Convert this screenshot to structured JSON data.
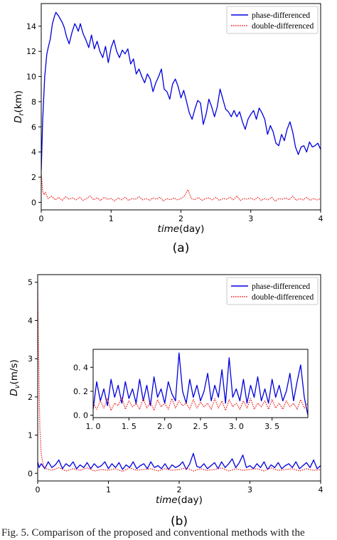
{
  "chart_data": [
    {
      "type": "line",
      "panel_label": "(a)",
      "xlabel": "time(day)",
      "xlabel_italic_part": "time",
      "xlabel_unit_part": "(day)",
      "ylabel": "D_r(km)",
      "ylabel_main": "D",
      "ylabel_sub": "r",
      "ylabel_unit": "(km)",
      "xlim": [
        0,
        4
      ],
      "ylim": [
        -0.6,
        15.8
      ],
      "xticks": [
        0,
        1,
        2,
        3,
        4
      ],
      "yticks": [
        0,
        2,
        4,
        6,
        8,
        10,
        12,
        14
      ],
      "legend_position": "top-right",
      "series": [
        {
          "name": "phase-differenced",
          "color": "#0000dd",
          "style": "solid",
          "x": [
            0,
            0.02,
            0.05,
            0.08,
            0.1,
            0.13,
            0.16,
            0.19,
            0.21,
            0.25,
            0.3,
            0.33,
            0.36,
            0.4,
            0.44,
            0.48,
            0.5,
            0.53,
            0.56,
            0.6,
            0.64,
            0.68,
            0.72,
            0.76,
            0.8,
            0.84,
            0.88,
            0.92,
            0.96,
            1.0,
            1.04,
            1.08,
            1.12,
            1.16,
            1.2,
            1.24,
            1.28,
            1.32,
            1.36,
            1.4,
            1.44,
            1.48,
            1.52,
            1.56,
            1.6,
            1.64,
            1.68,
            1.72,
            1.76,
            1.8,
            1.84,
            1.88,
            1.92,
            1.96,
            2.0,
            2.04,
            2.08,
            2.12,
            2.16,
            2.2,
            2.24,
            2.28,
            2.32,
            2.36,
            2.4,
            2.44,
            2.48,
            2.52,
            2.56,
            2.6,
            2.64,
            2.68,
            2.72,
            2.76,
            2.8,
            2.84,
            2.88,
            2.92,
            2.96,
            3.0,
            3.04,
            3.08,
            3.12,
            3.16,
            3.2,
            3.24,
            3.28,
            3.32,
            3.36,
            3.4,
            3.44,
            3.48,
            3.52,
            3.56,
            3.6,
            3.64,
            3.68,
            3.72,
            3.76,
            3.8,
            3.84,
            3.88,
            3.92,
            3.96,
            4.0
          ],
          "y": [
            2.5,
            6.5,
            10.0,
            11.8,
            12.3,
            13.0,
            14.2,
            14.8,
            15.1,
            14.8,
            14.3,
            13.9,
            13.2,
            12.6,
            13.5,
            14.2,
            14.0,
            13.6,
            14.2,
            13.4,
            12.9,
            12.3,
            13.3,
            12.2,
            12.8,
            12.0,
            11.5,
            12.4,
            11.1,
            12.3,
            12.9,
            12.0,
            11.5,
            12.1,
            11.8,
            12.2,
            11.0,
            11.4,
            10.2,
            10.6,
            10.0,
            9.5,
            10.2,
            9.8,
            8.8,
            9.5,
            10.0,
            10.6,
            9.0,
            8.8,
            8.2,
            9.4,
            9.8,
            9.2,
            8.3,
            8.9,
            8.0,
            7.1,
            6.6,
            7.4,
            8.1,
            7.9,
            6.2,
            7.0,
            8.2,
            7.6,
            6.8,
            7.6,
            9.0,
            8.2,
            7.4,
            7.2,
            6.8,
            7.3,
            6.8,
            7.2,
            6.4,
            5.8,
            6.6,
            7.0,
            7.3,
            6.6,
            7.5,
            7.1,
            6.6,
            5.4,
            6.1,
            5.6,
            4.7,
            4.5,
            5.4,
            4.9,
            5.8,
            6.4,
            5.6,
            4.4,
            3.8,
            4.4,
            4.5,
            4.0,
            4.8,
            4.4,
            4.5,
            4.7,
            4.2
          ]
        },
        {
          "name": "double-differenced",
          "color": "#ee2222",
          "style": "dotted",
          "x": [
            0,
            0.02,
            0.04,
            0.06,
            0.08,
            0.1,
            0.15,
            0.2,
            0.25,
            0.3,
            0.35,
            0.4,
            0.45,
            0.5,
            0.55,
            0.6,
            0.65,
            0.7,
            0.75,
            0.8,
            0.85,
            0.9,
            0.95,
            1.0,
            1.05,
            1.1,
            1.15,
            1.2,
            1.25,
            1.3,
            1.35,
            1.4,
            1.45,
            1.5,
            1.55,
            1.6,
            1.65,
            1.7,
            1.75,
            1.8,
            1.85,
            1.9,
            1.95,
            2.0,
            2.05,
            2.1,
            2.15,
            2.2,
            2.25,
            2.3,
            2.35,
            2.4,
            2.45,
            2.5,
            2.55,
            2.6,
            2.65,
            2.7,
            2.75,
            2.8,
            2.85,
            2.9,
            2.95,
            3.0,
            3.05,
            3.1,
            3.15,
            3.2,
            3.25,
            3.3,
            3.35,
            3.4,
            3.45,
            3.5,
            3.55,
            3.6,
            3.65,
            3.7,
            3.75,
            3.8,
            3.85,
            3.9,
            3.95,
            4.0
          ],
          "y": [
            2.4,
            0.9,
            0.6,
            0.8,
            0.5,
            0.3,
            0.5,
            0.2,
            0.4,
            0.15,
            0.45,
            0.25,
            0.35,
            0.2,
            0.4,
            0.15,
            0.3,
            0.5,
            0.2,
            0.35,
            0.15,
            0.4,
            0.25,
            0.3,
            0.1,
            0.35,
            0.2,
            0.4,
            0.15,
            0.3,
            0.25,
            0.45,
            0.2,
            0.3,
            0.15,
            0.35,
            0.25,
            0.4,
            0.1,
            0.3,
            0.2,
            0.35,
            0.2,
            0.3,
            0.5,
            1.0,
            0.3,
            0.2,
            0.4,
            0.15,
            0.3,
            0.35,
            0.2,
            0.4,
            0.15,
            0.3,
            0.25,
            0.4,
            0.2,
            0.5,
            0.15,
            0.3,
            0.25,
            0.35,
            0.2,
            0.4,
            0.15,
            0.3,
            0.2,
            0.4,
            0.1,
            0.3,
            0.25,
            0.35,
            0.2,
            0.5,
            0.15,
            0.3,
            0.2,
            0.4,
            0.15,
            0.3,
            0.2,
            0.3
          ]
        }
      ]
    },
    {
      "type": "line",
      "panel_label": "(b)",
      "xlabel": "time(day)",
      "xlabel_italic_part": "time",
      "xlabel_unit_part": "(day)",
      "ylabel": "D_v(m/s)",
      "ylabel_main": "D",
      "ylabel_sub": "v",
      "ylabel_unit": "(m/s)",
      "xlim": [
        0,
        4
      ],
      "ylim": [
        -0.2,
        5.2
      ],
      "xticks": [
        0,
        1,
        2,
        3,
        4
      ],
      "yticks": [
        0,
        1,
        2,
        3,
        4,
        5
      ],
      "legend_position": "top-right",
      "series": [
        {
          "name": "phase-differenced",
          "color": "#0000dd",
          "style": "solid",
          "x": [
            0,
            0.02,
            0.05,
            0.1,
            0.15,
            0.2,
            0.25,
            0.3,
            0.35,
            0.4,
            0.45,
            0.5,
            0.55,
            0.6,
            0.65,
            0.7,
            0.75,
            0.8,
            0.85,
            0.9,
            0.95,
            1.0,
            1.05,
            1.1,
            1.15,
            1.2,
            1.25,
            1.3,
            1.35,
            1.4,
            1.45,
            1.5,
            1.55,
            1.6,
            1.65,
            1.7,
            1.75,
            1.8,
            1.85,
            1.9,
            1.95,
            2.0,
            2.05,
            2.1,
            2.15,
            2.2,
            2.25,
            2.3,
            2.35,
            2.4,
            2.45,
            2.5,
            2.55,
            2.6,
            2.65,
            2.7,
            2.75,
            2.8,
            2.85,
            2.9,
            2.95,
            3.0,
            3.05,
            3.1,
            3.15,
            3.2,
            3.25,
            3.3,
            3.35,
            3.4,
            3.45,
            3.5,
            3.55,
            3.6,
            3.65,
            3.7,
            3.75,
            3.8,
            3.85,
            3.9,
            3.95,
            4.0
          ],
          "y": [
            0.3,
            0.15,
            0.25,
            0.12,
            0.3,
            0.15,
            0.22,
            0.35,
            0.12,
            0.25,
            0.18,
            0.3,
            0.12,
            0.22,
            0.15,
            0.28,
            0.12,
            0.25,
            0.15,
            0.2,
            0.3,
            0.12,
            0.25,
            0.15,
            0.28,
            0.1,
            0.22,
            0.15,
            0.3,
            0.12,
            0.2,
            0.25,
            0.12,
            0.3,
            0.15,
            0.2,
            0.12,
            0.25,
            0.1,
            0.22,
            0.15,
            0.2,
            0.3,
            0.1,
            0.25,
            0.52,
            0.18,
            0.15,
            0.25,
            0.12,
            0.2,
            0.28,
            0.12,
            0.3,
            0.15,
            0.25,
            0.38,
            0.15,
            0.28,
            0.48,
            0.15,
            0.2,
            0.12,
            0.25,
            0.15,
            0.3,
            0.1,
            0.22,
            0.15,
            0.28,
            0.12,
            0.2,
            0.25,
            0.15,
            0.3,
            0.12,
            0.2,
            0.28,
            0.15,
            0.35,
            0.12,
            0.2
          ]
        },
        {
          "name": "double-differenced",
          "color": "#ee2222",
          "style": "dotted",
          "x": [
            0,
            0.01,
            0.03,
            0.05,
            0.08,
            0.12,
            0.2,
            0.3,
            0.4,
            0.5,
            0.6,
            0.7,
            0.8,
            0.9,
            1.0,
            1.1,
            1.2,
            1.3,
            1.4,
            1.5,
            1.6,
            1.7,
            1.8,
            1.9,
            2.0,
            2.1,
            2.2,
            2.3,
            2.4,
            2.5,
            2.6,
            2.7,
            2.8,
            2.9,
            3.0,
            3.1,
            3.2,
            3.3,
            3.4,
            3.5,
            3.6,
            3.7,
            3.8,
            3.9,
            4.0
          ],
          "y": [
            5.0,
            3.5,
            1.2,
            0.5,
            0.2,
            0.12,
            0.08,
            0.15,
            0.06,
            0.12,
            0.08,
            0.14,
            0.06,
            0.1,
            0.08,
            0.12,
            0.05,
            0.14,
            0.08,
            0.1,
            0.12,
            0.06,
            0.12,
            0.08,
            0.1,
            0.14,
            0.06,
            0.12,
            0.08,
            0.1,
            0.14,
            0.06,
            0.12,
            0.08,
            0.1,
            0.12,
            0.06,
            0.14,
            0.08,
            0.1,
            0.12,
            0.06,
            0.12,
            0.08,
            0.1
          ]
        }
      ],
      "inset": {
        "xlim": [
          1.0,
          4.0
        ],
        "ylim": [
          -0.02,
          0.55
        ],
        "xticks": [
          1.0,
          1.5,
          2.0,
          2.5,
          3.0,
          3.5
        ],
        "xtick_labels": [
          "1. 0",
          "1. 5",
          "2. 0",
          "2. 5",
          "3. 0",
          "3. 5"
        ],
        "yticks": [
          0.0,
          0.2,
          0.4
        ],
        "ytick_labels": [
          "0. 0",
          "0. 2",
          "0. 4"
        ],
        "series": [
          {
            "name": "phase-differenced",
            "color": "#0000dd",
            "style": "solid",
            "x": [
              1.0,
              1.05,
              1.1,
              1.15,
              1.2,
              1.25,
              1.3,
              1.35,
              1.4,
              1.45,
              1.5,
              1.55,
              1.6,
              1.65,
              1.7,
              1.75,
              1.8,
              1.85,
              1.9,
              1.95,
              2.0,
              2.05,
              2.1,
              2.15,
              2.2,
              2.25,
              2.3,
              2.35,
              2.4,
              2.45,
              2.5,
              2.55,
              2.6,
              2.65,
              2.7,
              2.75,
              2.8,
              2.85,
              2.9,
              2.95,
              3.0,
              3.05,
              3.1,
              3.15,
              3.2,
              3.25,
              3.3,
              3.35,
              3.4,
              3.45,
              3.5,
              3.55,
              3.6,
              3.65,
              3.7,
              3.75,
              3.8,
              3.85,
              3.9,
              3.95,
              4.0
            ],
            "y": [
              0.05,
              0.28,
              0.12,
              0.22,
              0.08,
              0.3,
              0.15,
              0.25,
              0.1,
              0.28,
              0.14,
              0.22,
              0.1,
              0.3,
              0.12,
              0.25,
              0.08,
              0.32,
              0.15,
              0.22,
              0.1,
              0.28,
              0.18,
              0.12,
              0.52,
              0.2,
              0.1,
              0.3,
              0.15,
              0.25,
              0.12,
              0.2,
              0.35,
              0.12,
              0.25,
              0.15,
              0.38,
              0.1,
              0.48,
              0.15,
              0.22,
              0.12,
              0.3,
              0.1,
              0.25,
              0.15,
              0.32,
              0.12,
              0.22,
              0.1,
              0.3,
              0.15,
              0.25,
              0.12,
              0.2,
              0.35,
              0.12,
              0.28,
              0.42,
              0.15,
              0.0
            ]
          },
          {
            "name": "double-differenced",
            "color": "#ee2222",
            "style": "dotted",
            "x": [
              1.0,
              1.05,
              1.1,
              1.15,
              1.2,
              1.25,
              1.3,
              1.35,
              1.4,
              1.45,
              1.5,
              1.55,
              1.6,
              1.65,
              1.7,
              1.75,
              1.8,
              1.85,
              1.9,
              1.95,
              2.0,
              2.05,
              2.1,
              2.15,
              2.2,
              2.25,
              2.3,
              2.35,
              2.4,
              2.45,
              2.5,
              2.55,
              2.6,
              2.65,
              2.7,
              2.75,
              2.8,
              2.85,
              2.9,
              2.95,
              3.0,
              3.05,
              3.1,
              3.15,
              3.2,
              3.25,
              3.3,
              3.35,
              3.4,
              3.45,
              3.5,
              3.55,
              3.6,
              3.65,
              3.7,
              3.75,
              3.8,
              3.85,
              3.9,
              3.95,
              4.0
            ],
            "y": [
              0.1,
              0.05,
              0.12,
              0.06,
              0.14,
              0.04,
              0.1,
              0.08,
              0.15,
              0.05,
              0.12,
              0.07,
              0.1,
              0.05,
              0.14,
              0.06,
              0.11,
              0.04,
              0.13,
              0.07,
              0.1,
              0.05,
              0.14,
              0.06,
              0.12,
              0.08,
              0.1,
              0.05,
              0.13,
              0.06,
              0.11,
              0.07,
              0.1,
              0.05,
              0.14,
              0.06,
              0.12,
              0.04,
              0.13,
              0.07,
              0.1,
              0.05,
              0.12,
              0.06,
              0.14,
              0.05,
              0.1,
              0.07,
              0.12,
              0.05,
              0.13,
              0.06,
              0.1,
              0.05,
              0.12,
              0.07,
              0.1,
              0.05,
              0.13,
              0.06,
              0.1
            ]
          }
        ]
      }
    }
  ],
  "caption": {
    "text": "Fig. 5.   Comparison of the proposed and conventional methods with the"
  }
}
